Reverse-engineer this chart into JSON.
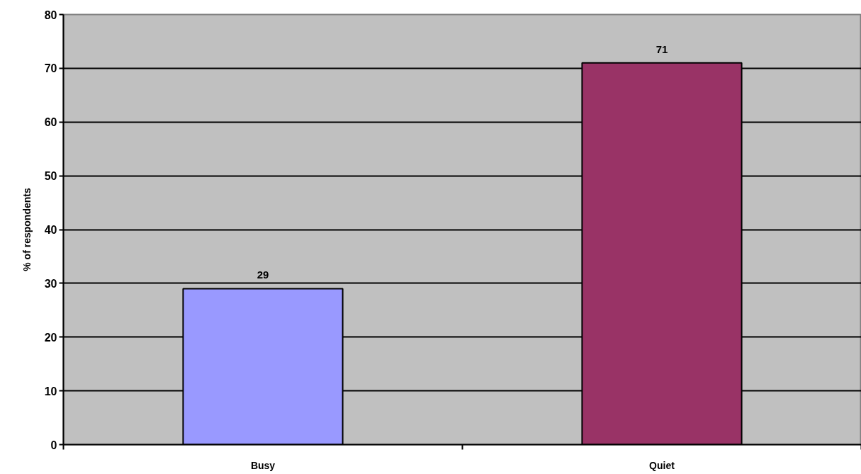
{
  "chart_data": {
    "type": "bar",
    "ylabel": "% of respondents",
    "categories": [
      "Busy",
      "Quiet"
    ],
    "values": [
      29,
      71
    ],
    "colors": [
      "#9999ff",
      "#993366"
    ],
    "ylim": [
      0,
      80
    ],
    "yticks": [
      0,
      10,
      20,
      30,
      40,
      50,
      60,
      70,
      80
    ],
    "grid": "y",
    "data_labels": true
  }
}
